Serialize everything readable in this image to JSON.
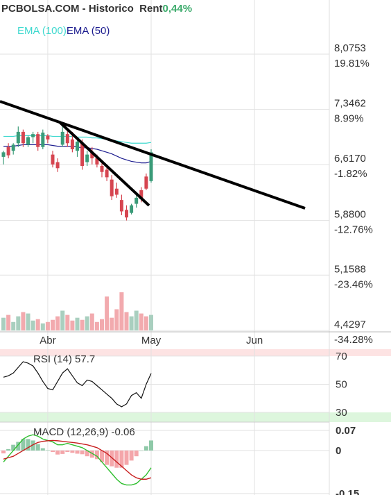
{
  "chart_data": [
    {
      "type": "candlestick",
      "title": "PCBOLSA.COM - Historico  Rent",
      "subtitle": "0,44%",
      "categories": [
        null,
        null,
        null,
        null,
        null,
        null,
        null,
        null,
        null,
        "Abr",
        null,
        null,
        null,
        null,
        null,
        null,
        null,
        null,
        null,
        null,
        null,
        null,
        null,
        null,
        null,
        null,
        null,
        null,
        null,
        null,
        "May",
        null,
        null,
        null,
        null,
        null,
        null,
        null,
        null,
        null,
        null,
        null,
        null,
        null,
        null,
        null,
        null,
        null,
        null,
        null,
        null,
        "Jun"
      ],
      "open": [
        6.72,
        6.85,
        6.8,
        6.9,
        7.05,
        6.88,
        6.98,
        7.02,
        6.85,
        7.0,
        6.75,
        6.65,
        6.88,
        7.02,
        6.95,
        6.8,
        6.9,
        6.65,
        6.78,
        6.7,
        6.6,
        6.55,
        6.42,
        6.3,
        6.15,
        6.02,
        5.98,
        6.1,
        6.28,
        6.46,
        6.4,
        null,
        null,
        null,
        null,
        null,
        null,
        null,
        null,
        null,
        null,
        null,
        null,
        null,
        null,
        null,
        null,
        null,
        null,
        null,
        null,
        null
      ],
      "high": [
        6.8,
        6.9,
        6.9,
        7.12,
        7.08,
        7.0,
        7.05,
        7.05,
        7.08,
        7.02,
        6.8,
        6.7,
        7.15,
        7.1,
        7.05,
        6.98,
        6.95,
        6.8,
        6.85,
        6.75,
        6.68,
        6.6,
        6.48,
        6.38,
        6.22,
        6.08,
        6.1,
        6.22,
        6.32,
        6.5,
        6.82,
        null,
        null,
        null,
        null,
        null,
        null,
        null,
        null,
        null,
        null,
        null,
        null,
        null,
        null,
        null,
        null,
        null,
        null,
        null,
        null,
        null
      ],
      "low": [
        6.62,
        6.7,
        6.75,
        6.85,
        6.85,
        6.85,
        6.9,
        6.8,
        6.82,
        6.9,
        6.58,
        6.52,
        6.85,
        6.85,
        6.78,
        6.72,
        6.55,
        6.6,
        6.62,
        6.58,
        6.45,
        6.4,
        6.15,
        6.18,
        5.95,
        5.88,
        5.96,
        6.05,
        6.12,
        6.28,
        6.38,
        null,
        null,
        null,
        null,
        null,
        null,
        null,
        null,
        null,
        null,
        null,
        null,
        null,
        null,
        null,
        null,
        null,
        null,
        null,
        null,
        null
      ],
      "close": [
        6.78,
        6.74,
        6.88,
        7.05,
        6.9,
        6.98,
        7.02,
        6.85,
        7.04,
        6.95,
        6.62,
        6.57,
        7.05,
        6.9,
        6.82,
        6.92,
        6.6,
        6.75,
        6.7,
        6.62,
        6.52,
        6.45,
        6.2,
        6.22,
        6.0,
        5.92,
        6.08,
        6.18,
        6.16,
        6.3,
        6.78,
        null,
        null,
        null,
        null,
        null,
        null,
        null,
        null,
        null,
        null,
        null,
        null,
        null,
        null,
        null,
        null,
        null,
        null,
        null,
        null,
        null
      ],
      "volume": [
        18,
        22,
        12,
        20,
        26,
        24,
        14,
        16,
        10,
        12,
        15,
        20,
        28,
        22,
        14,
        18,
        15,
        20,
        24,
        12,
        16,
        48,
        18,
        30,
        54,
        26,
        20,
        28,
        24,
        20,
        22,
        null,
        null,
        null,
        null,
        null,
        null,
        null,
        null,
        null,
        null,
        null,
        null,
        null,
        null,
        null,
        null,
        null,
        null,
        null,
        null,
        null
      ],
      "series": [
        {
          "name": "EMA (100)",
          "color": "#3fd9cf",
          "values": [
            6.99,
            6.99,
            6.99,
            7.0,
            7.0,
            7.0,
            7.0,
            7.0,
            7.0,
            7.0,
            6.99,
            6.99,
            6.99,
            6.99,
            6.99,
            6.98,
            6.98,
            6.98,
            6.97,
            6.97,
            6.96,
            6.95,
            6.94,
            6.93,
            6.92,
            6.91,
            6.9,
            6.9,
            6.9,
            6.9,
            6.91,
            null,
            null,
            null,
            null,
            null,
            null,
            null,
            null,
            null,
            null,
            null,
            null,
            null,
            null,
            null,
            null,
            null,
            null,
            null,
            null,
            null
          ]
        },
        {
          "name": "EMA (50)",
          "color": "#1c1c8f",
          "values": [
            6.86,
            6.86,
            6.86,
            6.87,
            6.88,
            6.88,
            6.88,
            6.88,
            6.88,
            6.88,
            6.87,
            6.86,
            6.86,
            6.86,
            6.86,
            6.85,
            6.84,
            6.84,
            6.83,
            6.82,
            6.8,
            6.78,
            6.76,
            6.73,
            6.7,
            6.68,
            6.66,
            6.65,
            6.64,
            6.64,
            6.66,
            null,
            null,
            null,
            null,
            null,
            null,
            null,
            null,
            null,
            null,
            null,
            null,
            null,
            null,
            null,
            null,
            null,
            null,
            null,
            null,
            null
          ]
        }
      ],
      "up_color": "#3a9b78",
      "down_color": "#d64550",
      "volume_up_color": "#a9cfbf",
      "volume_down_color": "#f2aaae",
      "ylim": [
        4.41,
        8.79
      ],
      "yticks": [
        {
          "value": 8.0753,
          "label": "8,0753"
        },
        {
          "value": 7.3462,
          "label": "7,3462"
        },
        {
          "value": 6.617,
          "label": "6,6170"
        },
        {
          "value": 5.88,
          "label": "5,8800"
        },
        {
          "value": 5.1588,
          "label": "5,1588"
        },
        {
          "value": 4.4297,
          "label": "4,4297"
        }
      ],
      "y2lim": [
        -34.55,
        30.41
      ],
      "y2ticks": [
        {
          "value": 19.81,
          "label": "19.81%"
        },
        {
          "value": 8.99,
          "label": "8.99%"
        },
        {
          "value": -1.82,
          "label": "-1.82%"
        },
        {
          "value": -12.76,
          "label": "-12.76%"
        },
        {
          "value": -23.46,
          "label": "-23.46%"
        },
        {
          "value": -34.28,
          "label": "-34.28%"
        }
      ],
      "grid": true
    },
    {
      "type": "line",
      "title": "RSI (14) 57.7",
      "values": [
        55,
        56,
        58,
        62,
        66,
        65,
        63,
        58,
        52,
        47,
        46,
        52,
        58,
        61,
        56,
        51,
        49,
        53,
        52,
        49,
        46,
        43,
        40,
        36,
        34,
        36,
        42,
        44,
        40,
        50,
        57.7
      ],
      "color": "#111111",
      "ylim": [
        23.1,
        74.9
      ],
      "yticks": [
        30,
        50,
        70
      ],
      "zone_colors": [
        "#fde3e3",
        "#ddf6dd"
      ]
    },
    {
      "type": "macd",
      "title": "MACD (12,26,9) -0.06",
      "series": [
        {
          "name": "MACD",
          "color": "#2fbf2f",
          "values": [
            -0.04,
            -0.02,
            0.0,
            0.02,
            0.04,
            0.05,
            0.055,
            0.05,
            0.04,
            0.035,
            0.03,
            0.02,
            0.02,
            0.025,
            0.02,
            0.015,
            0.01,
            0.0,
            -0.01,
            -0.02,
            -0.04,
            -0.06,
            -0.08,
            -0.1,
            -0.115,
            -0.12,
            -0.12,
            -0.115,
            -0.1,
            -0.085,
            -0.06
          ]
        },
        {
          "name": "Signal",
          "color": "#c81e1e",
          "values": [
            -0.03,
            -0.025,
            -0.02,
            -0.01,
            0.0,
            0.01,
            0.02,
            0.028,
            0.032,
            0.034,
            0.035,
            0.034,
            0.032,
            0.03,
            0.028,
            0.026,
            0.023,
            0.02,
            0.015,
            0.01,
            0.0,
            -0.01,
            -0.025,
            -0.04,
            -0.055,
            -0.07,
            -0.085,
            -0.095,
            -0.1,
            -0.1,
            -0.095
          ]
        }
      ],
      "histogram": [
        -0.01,
        0.005,
        0.02,
        0.03,
        0.04,
        0.04,
        0.035,
        0.022,
        0.008,
        0.001,
        -0.005,
        -0.014,
        -0.012,
        -0.005,
        -0.008,
        -0.011,
        -0.013,
        -0.02,
        -0.025,
        -0.03,
        -0.04,
        -0.05,
        -0.055,
        -0.06,
        -0.06,
        -0.05,
        -0.035,
        -0.02,
        0.0,
        0.015,
        0.035
      ],
      "histogram_colors": [
        "#8fc9a8",
        "#f4a6aa"
      ],
      "ylim": [
        -0.155,
        0.099
      ],
      "yticks": [
        0.07,
        0,
        -0.15
      ]
    }
  ]
}
